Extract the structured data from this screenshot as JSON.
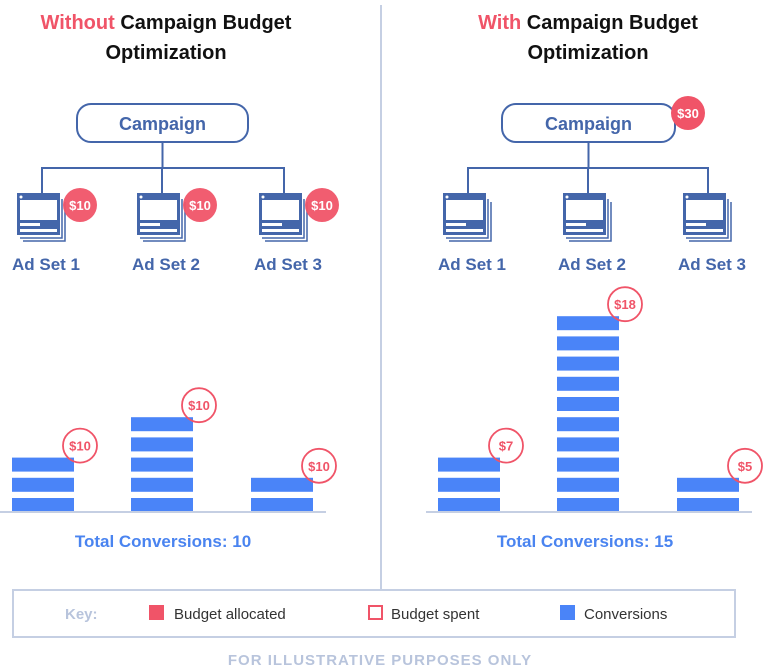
{
  "colors": {
    "red": "#f05468",
    "blue": "#4a84f8",
    "navy": "#4466aa",
    "grey": "#c5cfe3"
  },
  "panels": [
    {
      "title_accent": "Without",
      "title_rest": " Campaign Budget",
      "title_line2": "Optimization",
      "campaign_label": "Campaign",
      "campaign_budget": "",
      "ad_sets": [
        {
          "label": "Ad Set 1",
          "budget": "$10",
          "spent": "$10",
          "conversions": 3
        },
        {
          "label": "Ad Set 2",
          "budget": "$10",
          "spent": "$10",
          "conversions": 5
        },
        {
          "label": "Ad Set 3",
          "budget": "$10",
          "spent": "$10",
          "conversions": 2
        }
      ],
      "total": "Total Conversions: 10"
    },
    {
      "title_accent": "With",
      "title_rest": " Campaign Budget",
      "title_line2": "Optimization",
      "campaign_label": "Campaign",
      "campaign_budget": "$30",
      "ad_sets": [
        {
          "label": "Ad Set 1",
          "budget": "",
          "spent": "$7",
          "conversions": 3
        },
        {
          "label": "Ad Set 2",
          "budget": "",
          "spent": "$18",
          "conversions": 10
        },
        {
          "label": "Ad Set 3",
          "budget": "",
          "spent": "$5",
          "conversions": 2
        }
      ],
      "total": "Total Conversions: 15"
    }
  ],
  "key": {
    "label": "Key:",
    "items": [
      {
        "label": "Budget allocated",
        "style": "filled-red"
      },
      {
        "label": "Budget spent",
        "style": "outline-red"
      },
      {
        "label": "Conversions",
        "style": "filled-blue"
      }
    ]
  },
  "footer": "FOR ILLUSTRATIVE PURPOSES ONLY"
}
